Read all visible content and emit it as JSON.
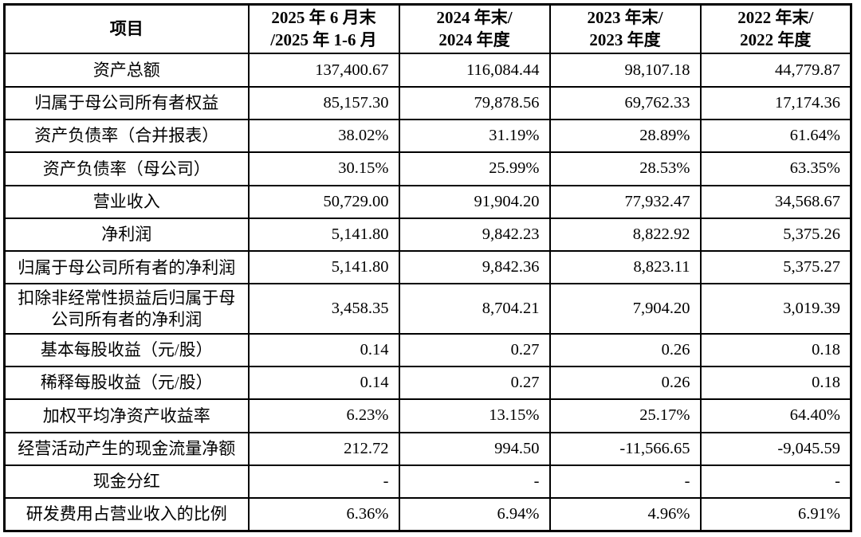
{
  "table": {
    "columns": [
      "项目",
      "2025 年 6 月末\n/2025 年 1-6 月",
      "2024 年末/\n2024 年度",
      "2023 年末/\n2023 年度",
      "2022 年末/\n2022 年度"
    ],
    "rows": [
      {
        "label": "资产总额",
        "values": [
          "137,400.67",
          "116,084.44",
          "98,107.18",
          "44,779.87"
        ]
      },
      {
        "label": "归属于母公司所有者权益",
        "values": [
          "85,157.30",
          "79,878.56",
          "69,762.33",
          "17,174.36"
        ]
      },
      {
        "label": "资产负债率（合并报表）",
        "values": [
          "38.02%",
          "31.19%",
          "28.89%",
          "61.64%"
        ]
      },
      {
        "label": "资产负债率（母公司）",
        "values": [
          "30.15%",
          "25.99%",
          "28.53%",
          "63.35%"
        ]
      },
      {
        "label": "营业收入",
        "values": [
          "50,729.00",
          "91,904.20",
          "77,932.47",
          "34,568.67"
        ]
      },
      {
        "label": "净利润",
        "values": [
          "5,141.80",
          "9,842.23",
          "8,822.92",
          "5,375.26"
        ]
      },
      {
        "label": "归属于母公司所有者的净利润",
        "values": [
          "5,141.80",
          "9,842.36",
          "8,823.11",
          "5,375.27"
        ]
      },
      {
        "label": "扣除非经常性损益后归属于母\n公司所有者的净利润",
        "values": [
          "3,458.35",
          "8,704.21",
          "7,904.20",
          "3,019.39"
        ]
      },
      {
        "label": "基本每股收益（元/股）",
        "values": [
          "0.14",
          "0.27",
          "0.26",
          "0.18"
        ]
      },
      {
        "label": "稀释每股收益（元/股）",
        "values": [
          "0.14",
          "0.27",
          "0.26",
          "0.18"
        ]
      },
      {
        "label": "加权平均净资产收益率",
        "values": [
          "6.23%",
          "13.15%",
          "25.17%",
          "64.40%"
        ]
      },
      {
        "label": "经营活动产生的现金流量净额",
        "values": [
          "212.72",
          "994.50",
          "-11,566.65",
          "-9,045.59"
        ]
      },
      {
        "label": "现金分红",
        "values": [
          "-",
          "-",
          "-",
          "-"
        ]
      },
      {
        "label": "研发费用占营业收入的比例",
        "values": [
          "6.36%",
          "6.94%",
          "4.96%",
          "6.91%"
        ]
      }
    ]
  }
}
